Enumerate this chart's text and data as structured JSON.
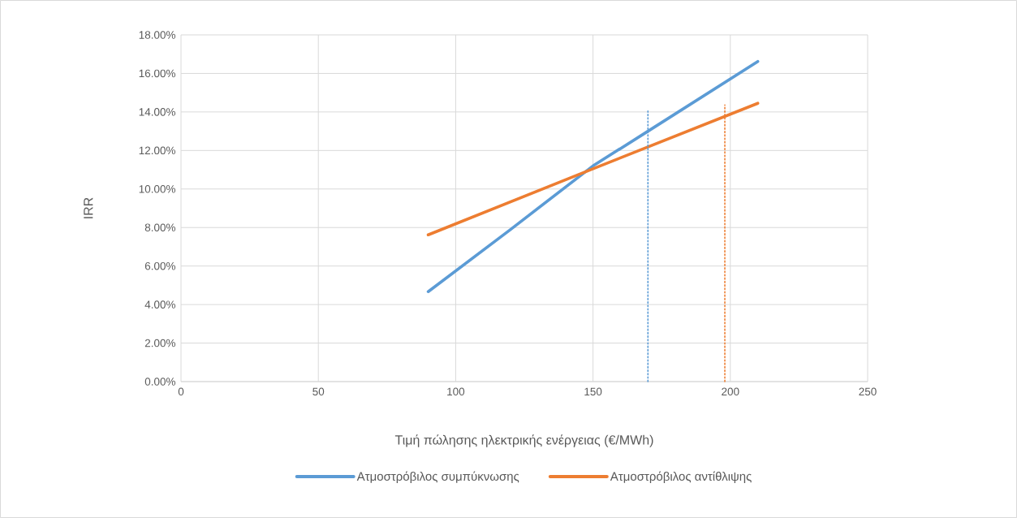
{
  "chart_data": {
    "type": "line",
    "xlabel": "Τιμή πώλησης ηλεκτρικής ενέργειας (€/MWh)",
    "ylabel": "IRR",
    "xlim": [
      0,
      250
    ],
    "xticks": [
      0,
      50,
      100,
      150,
      200,
      250
    ],
    "ylim": [
      0,
      18
    ],
    "yticks": [
      {
        "value": 0,
        "label": "0.00%"
      },
      {
        "value": 2,
        "label": "2.00%"
      },
      {
        "value": 4,
        "label": "4.00%"
      },
      {
        "value": 6,
        "label": "6.00%"
      },
      {
        "value": 8,
        "label": "8.00%"
      },
      {
        "value": 10,
        "label": "10.00%"
      },
      {
        "value": 12,
        "label": "12.00%"
      },
      {
        "value": 14,
        "label": "14.00%"
      },
      {
        "value": 16,
        "label": "16.00%"
      },
      {
        "value": 18,
        "label": "18.00%"
      }
    ],
    "grid": true,
    "legend": "bottom",
    "line_style": "solid",
    "series": [
      {
        "name": "Ατμοστρόβιλος συμπύκνωσης",
        "color": "#5b9bd5",
        "x": [
          90,
          120,
          150,
          170,
          210
        ],
        "values": [
          4.67,
          7.9,
          11.2,
          13.0,
          16.62
        ]
      },
      {
        "name": "Ατμοστρόβιλος αντίθλιψης",
        "color": "#ed7d31",
        "x": [
          90,
          150,
          210
        ],
        "values": [
          7.62,
          11.05,
          14.45
        ]
      },
      {
        "color": "#5b9bd5",
        "line_style": "dotted",
        "x": [
          170,
          170
        ],
        "values": [
          0,
          14.05
        ]
      },
      {
        "color": "#ed7d31",
        "line_style": "dotted",
        "x": [
          198,
          198
        ],
        "values": [
          0,
          14.36
        ]
      }
    ]
  }
}
